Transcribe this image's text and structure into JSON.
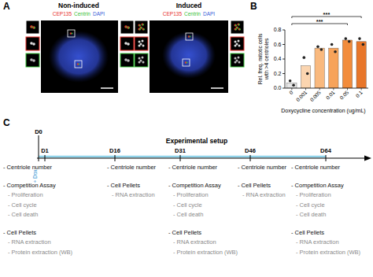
{
  "panel_a": {
    "label": "A",
    "images": [
      {
        "title": "Non-induced",
        "channels": [
          {
            "name": "CEP135",
            "color": "#e8302a"
          },
          {
            "name": "Centrin",
            "color": "#37c037"
          },
          {
            "name": "DAPI",
            "color": "#3a5bd8"
          }
        ]
      },
      {
        "title": "Induced",
        "channels": [
          {
            "name": "CEP135",
            "color": "#e8302a"
          },
          {
            "name": "Centrin",
            "color": "#37c037"
          },
          {
            "name": "DAPI",
            "color": "#3a5bd8"
          }
        ]
      }
    ]
  },
  "chart_data": {
    "type": "bar",
    "label": "B",
    "categories": [
      "0",
      "0.001",
      "0.005",
      "0.01",
      "0.05",
      "0.1"
    ],
    "values": [
      0.07,
      0.31,
      0.55,
      0.55,
      0.66,
      0.64
    ],
    "replicates": [
      [
        0.1,
        0.04
      ],
      [
        0.42,
        0.2
      ],
      [
        0.57,
        0.53
      ],
      [
        0.6,
        0.5
      ],
      [
        0.68,
        0.64
      ],
      [
        0.68,
        0.6
      ]
    ],
    "colors": [
      "#e6e6e6",
      "#fbd5b0",
      "#f9b97e",
      "#f7a35a",
      "#f28c3c",
      "#e8762a"
    ],
    "ylim": [
      0,
      0.8
    ],
    "yticks": [
      {
        "value": 0,
        "label": "0.0"
      },
      0.2,
      0.4,
      0.6,
      0.8
    ],
    "ylabel": [
      "Rel. freq. mitotic cells",
      "with >4 centrioles"
    ],
    "xlabel": "Doxycycline concentration (ug/mL)",
    "significance": [
      {
        "from": 0,
        "to": 5,
        "label": "***"
      },
      {
        "from": 0,
        "to": 4,
        "label": "***"
      }
    ]
  },
  "panel_c": {
    "label": "C",
    "title": "Experimental setup",
    "start": {
      "label": "D0",
      "treatment": "+ Dox"
    },
    "timepoints": [
      {
        "label": "D1",
        "items": [
          {
            "text": "- Centriole number"
          },
          {
            "text": "- Competition Assay",
            "sub": [
              "- Proliferation",
              "- Cell cycle",
              "- Cell death"
            ]
          },
          {
            "text": "- Cell Pellets",
            "sub": [
              "- RNA extraction",
              "- Protein extraction (WB)"
            ]
          }
        ]
      },
      {
        "label": "D16",
        "items": [
          {
            "text": "- Centriole number"
          },
          {
            "text": "- Cell Pellets",
            "sub": [
              "- RNA extraction"
            ]
          }
        ]
      },
      {
        "label": "D31",
        "items": [
          {
            "text": "- Centriole number"
          },
          {
            "text": "- Competition Assay",
            "sub": [
              "- Proliferation",
              "- Cell cycle",
              "- Cell death"
            ]
          },
          {
            "text": "- Cell Pellets",
            "sub": [
              "- RNA extraction",
              "- Protein extraction (WB)"
            ]
          }
        ]
      },
      {
        "label": "D46",
        "items": [
          {
            "text": "- Centriole number"
          },
          {
            "text": "- Cell Pellets",
            "sub": [
              "- RNA extraction"
            ]
          }
        ]
      },
      {
        "label": "D64",
        "items": [
          {
            "text": "- Centriole number"
          },
          {
            "text": "- Competition Assay",
            "sub": [
              "- Proliferation",
              "- Cell cycle",
              "- Cell death"
            ]
          },
          {
            "text": "- Cell Pellets",
            "sub": [
              "- RNA extraction",
              "- Protein extraction (WB)"
            ]
          }
        ]
      }
    ]
  }
}
